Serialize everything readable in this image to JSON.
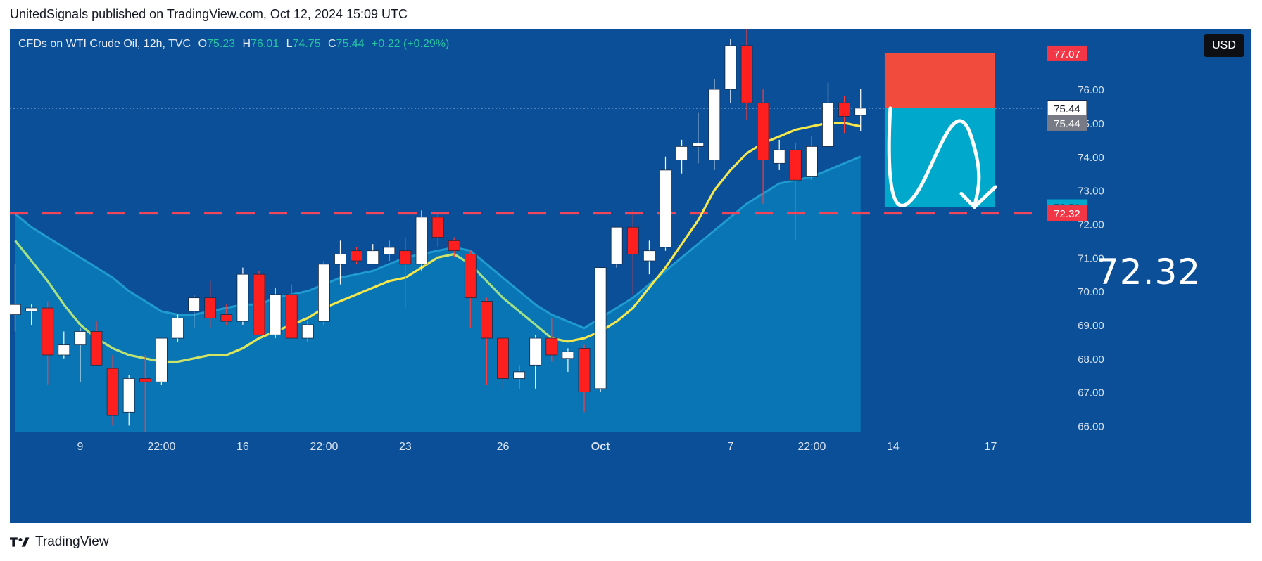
{
  "header": {
    "publisher_line": "UnitedSignals published on TradingView.com, Oct 12, 2024 15:09 UTC"
  },
  "legend": {
    "symbol": "CFDs on WTI Crude Oil, 12h, TVC",
    "o_label": "O",
    "o_value": "75.23",
    "h_label": "H",
    "h_value": "76.01",
    "l_label": "L",
    "l_value": "74.75",
    "c_label": "C",
    "c_value": "75.44",
    "change": "+0.22 (+0.29%)"
  },
  "currency_button": "USD",
  "target_big_label": "72.32",
  "footer": {
    "brand": "TradingView"
  },
  "colors": {
    "background": "#0a4f98",
    "up_candle": "#ffffff",
    "down_candle": "#ff1f1f",
    "ema_fast": "#f6e84a",
    "ema_slow": "#9fe08a",
    "area_fill": "#0b7bb8",
    "stop_zone": "#f04b3c",
    "target_zone": "#00a9cc",
    "support_line": "#f0455a"
  },
  "chart_data": {
    "type": "candlestick",
    "title": "CFDs on WTI Crude Oil, 12h, TVC",
    "ylim": [
      65.8,
      77.8
    ],
    "y_ticks": [
      "66.00",
      "67.00",
      "68.00",
      "69.00",
      "70.00",
      "71.00",
      "72.00",
      "73.00",
      "74.00",
      "75.00",
      "76.00"
    ],
    "x_tick_labels": [
      {
        "i": 4,
        "label": "9"
      },
      {
        "i": 9,
        "label": "22:00"
      },
      {
        "i": 14,
        "label": "16"
      },
      {
        "i": 19,
        "label": "22:00"
      },
      {
        "i": 24,
        "label": "23"
      },
      {
        "i": 30,
        "label": "26"
      },
      {
        "i": 36,
        "label": "Oct"
      },
      {
        "i": 44,
        "label": "7"
      },
      {
        "i": 49,
        "label": "22:00"
      },
      {
        "i": 54,
        "label": "14"
      },
      {
        "i": 60,
        "label": "17"
      }
    ],
    "candles": [
      {
        "o": 69.3,
        "h": 70.8,
        "l": 68.8,
        "c": 69.6
      },
      {
        "o": 69.4,
        "h": 69.6,
        "l": 69.0,
        "c": 69.5
      },
      {
        "o": 69.5,
        "h": 69.7,
        "l": 67.2,
        "c": 68.1
      },
      {
        "o": 68.1,
        "h": 68.8,
        "l": 68.0,
        "c": 68.4
      },
      {
        "o": 68.4,
        "h": 68.9,
        "l": 67.3,
        "c": 68.8
      },
      {
        "o": 68.8,
        "h": 69.1,
        "l": 67.8,
        "c": 67.8
      },
      {
        "o": 67.7,
        "h": 68.1,
        "l": 66.0,
        "c": 66.3
      },
      {
        "o": 66.4,
        "h": 67.5,
        "l": 66.0,
        "c": 67.4
      },
      {
        "o": 67.4,
        "h": 68.1,
        "l": 65.8,
        "c": 67.3
      },
      {
        "o": 67.3,
        "h": 68.6,
        "l": 67.2,
        "c": 68.6
      },
      {
        "o": 68.6,
        "h": 69.3,
        "l": 68.5,
        "c": 69.2
      },
      {
        "o": 69.4,
        "h": 69.9,
        "l": 68.9,
        "c": 69.8
      },
      {
        "o": 69.8,
        "h": 70.3,
        "l": 68.9,
        "c": 69.2
      },
      {
        "o": 69.3,
        "h": 69.6,
        "l": 69.0,
        "c": 69.1
      },
      {
        "o": 69.1,
        "h": 70.7,
        "l": 69.0,
        "c": 70.5
      },
      {
        "o": 70.5,
        "h": 70.6,
        "l": 68.7,
        "c": 68.7
      },
      {
        "o": 68.7,
        "h": 70.1,
        "l": 68.6,
        "c": 69.9
      },
      {
        "o": 69.9,
        "h": 70.2,
        "l": 68.6,
        "c": 68.6
      },
      {
        "o": 68.6,
        "h": 69.1,
        "l": 68.5,
        "c": 69.0
      },
      {
        "o": 69.1,
        "h": 70.9,
        "l": 69.0,
        "c": 70.8
      },
      {
        "o": 70.8,
        "h": 71.5,
        "l": 70.2,
        "c": 71.1
      },
      {
        "o": 71.2,
        "h": 71.3,
        "l": 70.8,
        "c": 70.9
      },
      {
        "o": 70.8,
        "h": 71.4,
        "l": 70.8,
        "c": 71.2
      },
      {
        "o": 71.1,
        "h": 71.5,
        "l": 70.9,
        "c": 71.3
      },
      {
        "o": 71.2,
        "h": 71.6,
        "l": 69.5,
        "c": 70.8
      },
      {
        "o": 70.8,
        "h": 72.4,
        "l": 70.6,
        "c": 72.2
      },
      {
        "o": 72.2,
        "h": 72.3,
        "l": 71.3,
        "c": 71.6
      },
      {
        "o": 71.5,
        "h": 71.6,
        "l": 71.0,
        "c": 71.2
      },
      {
        "o": 71.1,
        "h": 71.2,
        "l": 68.9,
        "c": 69.8
      },
      {
        "o": 69.7,
        "h": 69.8,
        "l": 67.2,
        "c": 68.6
      },
      {
        "o": 68.6,
        "h": 68.6,
        "l": 67.1,
        "c": 67.4
      },
      {
        "o": 67.4,
        "h": 67.8,
        "l": 67.1,
        "c": 67.6
      },
      {
        "o": 67.8,
        "h": 68.7,
        "l": 67.1,
        "c": 68.6
      },
      {
        "o": 68.6,
        "h": 69.2,
        "l": 67.9,
        "c": 68.1
      },
      {
        "o": 68.0,
        "h": 68.3,
        "l": 67.6,
        "c": 68.2
      },
      {
        "o": 68.3,
        "h": 68.4,
        "l": 66.4,
        "c": 67.0
      },
      {
        "o": 67.1,
        "h": 70.7,
        "l": 67.0,
        "c": 70.7
      },
      {
        "o": 70.8,
        "h": 71.8,
        "l": 70.7,
        "c": 71.9
      },
      {
        "o": 71.9,
        "h": 72.4,
        "l": 69.9,
        "c": 71.1
      },
      {
        "o": 70.9,
        "h": 71.5,
        "l": 70.5,
        "c": 71.2
      },
      {
        "o": 71.3,
        "h": 74.0,
        "l": 71.2,
        "c": 73.6
      },
      {
        "o": 73.9,
        "h": 74.5,
        "l": 73.5,
        "c": 74.3
      },
      {
        "o": 74.3,
        "h": 75.3,
        "l": 73.8,
        "c": 74.4
      },
      {
        "o": 73.9,
        "h": 76.3,
        "l": 73.6,
        "c": 76.0
      },
      {
        "o": 76.0,
        "h": 77.5,
        "l": 75.6,
        "c": 77.3
      },
      {
        "o": 77.3,
        "h": 78.2,
        "l": 75.1,
        "c": 75.6
      },
      {
        "o": 75.6,
        "h": 76.0,
        "l": 72.6,
        "c": 73.9
      },
      {
        "o": 73.8,
        "h": 74.5,
        "l": 73.6,
        "c": 74.2
      },
      {
        "o": 74.2,
        "h": 74.4,
        "l": 71.5,
        "c": 73.3
      },
      {
        "o": 73.4,
        "h": 74.6,
        "l": 73.3,
        "c": 74.3
      },
      {
        "o": 74.3,
        "h": 76.2,
        "l": 74.3,
        "c": 75.6
      },
      {
        "o": 75.6,
        "h": 75.8,
        "l": 74.7,
        "c": 75.2
      },
      {
        "o": 75.23,
        "h": 76.01,
        "l": 74.75,
        "c": 75.44
      }
    ],
    "ema_fast": [
      71.5,
      70.9,
      70.3,
      69.6,
      69.0,
      68.6,
      68.3,
      68.1,
      68.0,
      67.9,
      67.9,
      68.0,
      68.1,
      68.1,
      68.3,
      68.6,
      68.8,
      69.0,
      69.2,
      69.5,
      69.7,
      69.9,
      70.1,
      70.3,
      70.4,
      70.7,
      71.0,
      71.1,
      70.8,
      70.3,
      69.8,
      69.4,
      69.0,
      68.6,
      68.5,
      68.6,
      68.8,
      69.1,
      69.5,
      70.1,
      70.7,
      71.4,
      72.1,
      73.0,
      73.6,
      74.1,
      74.4,
      74.6,
      74.8,
      74.9,
      75.0,
      75.0,
      74.9
    ],
    "ema_slow": [
      72.3,
      71.9,
      71.6,
      71.3,
      71.0,
      70.7,
      70.4,
      70.0,
      69.7,
      69.4,
      69.3,
      69.3,
      69.4,
      69.5,
      69.6,
      69.6,
      69.8,
      69.9,
      70.0,
      70.2,
      70.4,
      70.5,
      70.6,
      70.8,
      71.0,
      71.1,
      71.2,
      71.3,
      71.2,
      70.8,
      70.4,
      70.0,
      69.6,
      69.3,
      69.1,
      68.9,
      69.2,
      69.5,
      69.8,
      70.2,
      70.6,
      71.0,
      71.4,
      71.8,
      72.2,
      72.6,
      72.9,
      73.2,
      73.3,
      73.4,
      73.6,
      73.8,
      74.0
    ],
    "support_level": 72.32,
    "trade_setup": {
      "entry": 75.44,
      "stop": 77.07,
      "target": 72.5,
      "start_i": 54,
      "end_i": 60
    },
    "price_tags": [
      {
        "value": 77.07,
        "label": "77.07",
        "bg": "#f23645",
        "fg": "#ffffff"
      },
      {
        "value": 75.44,
        "label": "75.44",
        "bg": "#ffffff",
        "fg": "#131722",
        "border": "#131722"
      },
      {
        "value": 75.0,
        "label": "75.44",
        "bg": "#787b86",
        "fg": "#ffffff"
      },
      {
        "value": 72.5,
        "label": "72.50",
        "bg": "#00a9cc",
        "fg": "#131722"
      },
      {
        "value": 72.32,
        "label": "72.32",
        "bg": "#f23645",
        "fg": "#ffffff"
      }
    ]
  }
}
